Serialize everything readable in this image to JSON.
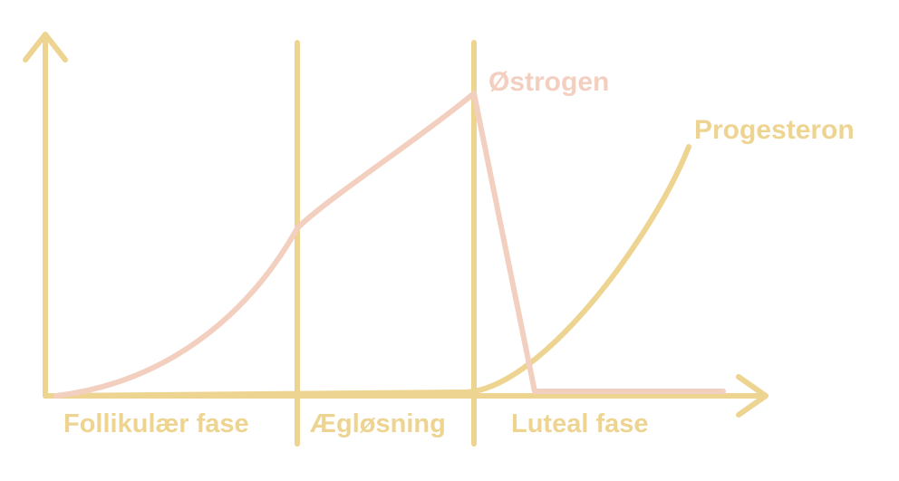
{
  "colors": {
    "axis": "#EED491",
    "progesterone": "#EED491",
    "estrogen": "#F3CFC0"
  },
  "phases": {
    "follicular": "Follikulær fase",
    "ovulation": "Ægløsning",
    "luteal": "Luteal fase"
  },
  "curves": {
    "estrogen": "Østrogen",
    "progesterone": "Progesteron"
  }
}
